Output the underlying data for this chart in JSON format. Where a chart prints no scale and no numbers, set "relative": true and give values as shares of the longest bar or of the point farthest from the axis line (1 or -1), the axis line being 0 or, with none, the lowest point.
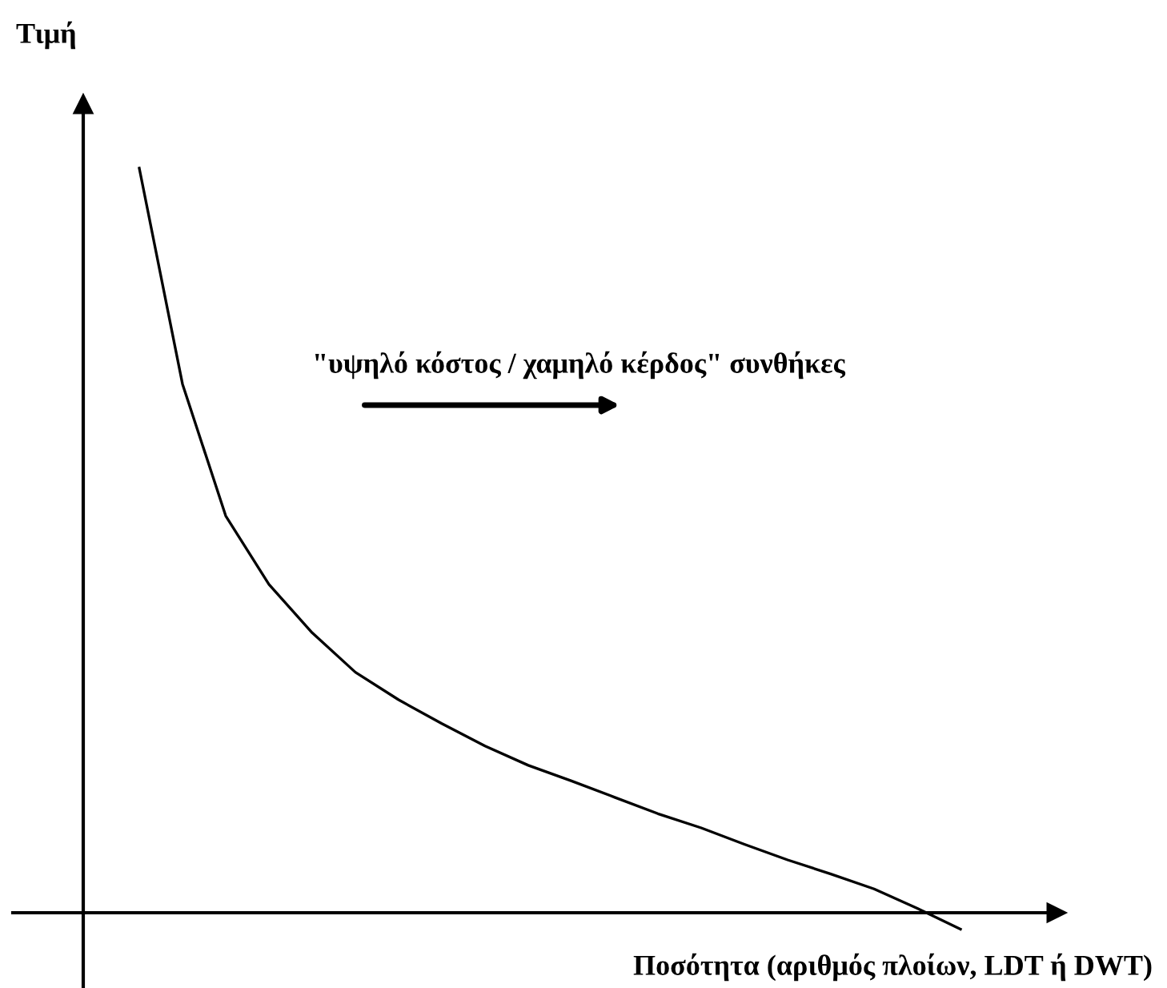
{
  "chart_data": {
    "type": "line",
    "relative": true,
    "ylabel": "Τιμή",
    "xlabel": "Ποσότητα (αριθμός πλοίων, LDT ή DWT)",
    "annotations": [
      "\"υψηλό κόστος / χαμηλό κέρδος\" συνθήκες"
    ],
    "categories": [
      null,
      null,
      null,
      null,
      null,
      null,
      null,
      null,
      null,
      null,
      null,
      null,
      null,
      null,
      null,
      null,
      null,
      null,
      null,
      null
    ],
    "series": [
      {
        "color": "#000000",
        "values": [
          1.0,
          0.71,
          0.533,
          0.441,
          0.376,
          0.323,
          0.286,
          0.254,
          0.224,
          0.198,
          0.177,
          0.155,
          0.133,
          0.114,
          0.092,
          0.071,
          0.052,
          0.032,
          0.006,
          -0.022
        ]
      }
    ],
    "legend": false,
    "marker": "none",
    "line_style": "solid"
  }
}
